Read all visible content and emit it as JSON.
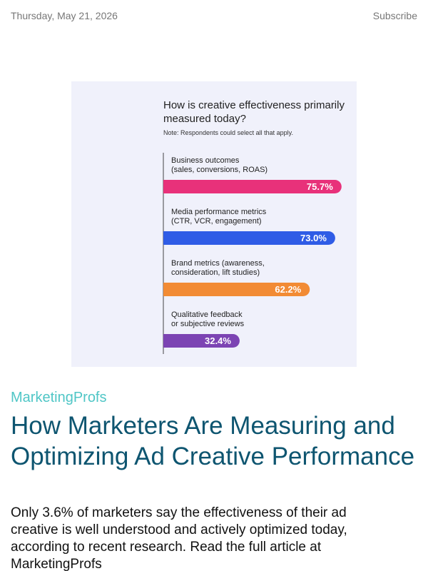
{
  "header": {
    "date": "Thursday, May 21, 2026",
    "subscribe_label": "Subscribe"
  },
  "chart_data": {
    "type": "bar",
    "title": "How is creative effectiveness primarily measured today?",
    "note": "Note: Respondents could select all that apply.",
    "categories": [
      [
        "Business outcomes",
        "(sales, conversions, ROAS)"
      ],
      [
        "Media performance metrics",
        "(CTR, VCR, engagement)"
      ],
      [
        "Brand metrics (awareness,",
        "consideration, lift studies)"
      ],
      [
        "Qualitative feedback",
        "or subjective reviews"
      ]
    ],
    "values": [
      75.7,
      73.0,
      62.2,
      32.4
    ],
    "value_labels": [
      "75.7%",
      "73.0%",
      "62.2%",
      "32.4%"
    ],
    "colors": [
      "#e8317a",
      "#2f5ce6",
      "#f28b34",
      "#7c44b3"
    ],
    "xlim": [
      0,
      100
    ],
    "orientation": "horizontal"
  },
  "article": {
    "source": "MarketingProfs",
    "title": "How Marketers Are Measuring and Optimizing Ad Creative Performance",
    "summary": "Only 3.6% of marketers say the effectiveness of their ad creative is well understood and actively optimized today, according to recent research. Read the full article at MarketingProfs"
  }
}
